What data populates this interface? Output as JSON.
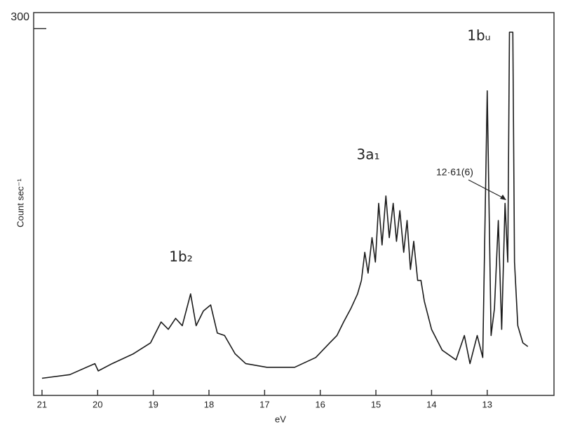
{
  "chart_data": {
    "type": "line",
    "x_label": "eV",
    "y_label": "Count sec⁻¹",
    "annotations": [
      "1b₂",
      "3a₁",
      "1bᵤ",
      "12·61(6)"
    ],
    "xlim": [
      21.15,
      11.8
    ],
    "ylim": [
      0,
      313
    ],
    "xticks": [
      21,
      20,
      19,
      18,
      17,
      16,
      15,
      14,
      13
    ],
    "yticks": [
      300
    ],
    "series": [
      {
        "color": "#1a1a1a",
        "x": [
          21.0,
          20.5,
          20.05,
          19.99,
          19.74,
          19.36,
          19.05,
          18.86,
          18.73,
          18.6,
          18.48,
          18.33,
          18.23,
          18.1,
          17.97,
          17.85,
          17.72,
          17.53,
          17.34,
          16.96,
          16.46,
          16.08,
          15.83,
          15.7,
          15.58,
          15.45,
          15.33,
          15.26,
          15.2,
          15.14,
          15.07,
          15.01,
          14.95,
          14.89,
          14.82,
          14.76,
          14.69,
          14.63,
          14.57,
          14.5,
          14.44,
          14.38,
          14.32,
          14.25,
          14.19,
          14.13,
          14.0,
          13.81,
          13.56,
          13.41,
          13.31,
          13.18,
          13.08,
          13.0,
          12.93,
          12.87,
          12.8,
          12.74,
          12.68,
          12.63,
          12.6,
          12.54,
          12.51,
          12.45,
          12.36,
          12.27
        ],
        "values": [
          14,
          17,
          26,
          20,
          26,
          34,
          43,
          60,
          54,
          63,
          57,
          83,
          57,
          69,
          74,
          51,
          49,
          34,
          26,
          23,
          23,
          31,
          43,
          49,
          60,
          71,
          83,
          94,
          117,
          100,
          129,
          109,
          157,
          123,
          163,
          129,
          157,
          126,
          151,
          117,
          143,
          103,
          126,
          94,
          94,
          77,
          54,
          37,
          29,
          49,
          26,
          49,
          31,
          249,
          49,
          71,
          143,
          54,
          157,
          109,
          297,
          297,
          109,
          57,
          43,
          40
        ]
      }
    ]
  }
}
